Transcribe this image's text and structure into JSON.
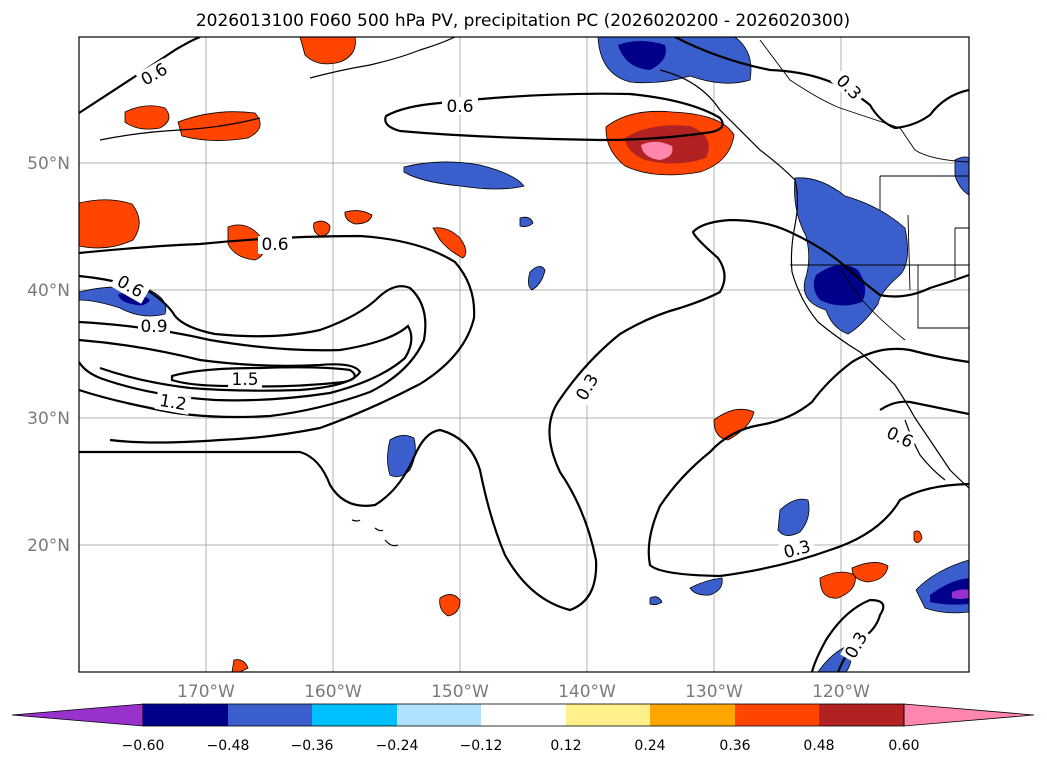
{
  "title": "2026013100 F060 500 hPa PV, precipitation PC (2026020200 - 2026020300)",
  "map": {
    "lat_labels": [
      "50°N",
      "40°N",
      "30°N",
      "20°N"
    ],
    "lon_labels": [
      "170°W",
      "160°W",
      "150°W",
      "140°W",
      "130°W",
      "120°W"
    ],
    "pv_contour_labels": [
      "0.6",
      "0.6",
      "0.6",
      "0.6",
      "0.9",
      "1.5",
      "1.2",
      "0.3",
      "0.3",
      "0.3",
      "0.6",
      "0.3"
    ]
  },
  "colorbar": {
    "ticks": [
      "−0.60",
      "−0.48",
      "−0.36",
      "−0.24",
      "−0.12",
      "0.12",
      "0.24",
      "0.36",
      "0.48",
      "0.60"
    ],
    "colors": [
      "#9932cc",
      "#00008b",
      "#3a5fcd",
      "#00bfff",
      "#b0e2ff",
      "#ffffff",
      "#fff08c",
      "#ffa500",
      "#ff4500",
      "#b22222",
      "#ff86ac"
    ]
  }
}
